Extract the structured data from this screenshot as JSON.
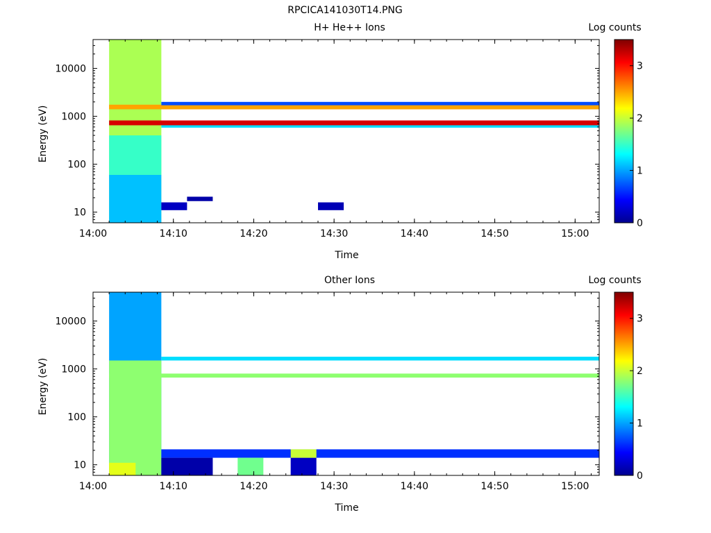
{
  "figure_title": "RPCICA141030T14.PNG",
  "colors": {
    "colormap": [
      "#00008f",
      "#0000ff",
      "#007fff",
      "#00ffff",
      "#7fff7f",
      "#ffff00",
      "#ff7f00",
      "#ff0000",
      "#7f0000"
    ],
    "background": "#ffffff"
  },
  "chart_data": [
    {
      "type": "heatmap",
      "title": "H+ He++ Ions",
      "xlabel": "Time",
      "ylabel": "Energy (eV)",
      "colorbar_label": "Log counts",
      "colorbar_ticks": [
        "0",
        "1",
        "2",
        "3"
      ],
      "colorbar_range": [
        0,
        3.5
      ],
      "x_ticks": [
        "14:00",
        "14:10",
        "14:20",
        "14:30",
        "14:40",
        "14:50",
        "15:00"
      ],
      "y_ticks": [
        "10",
        "100",
        "1000",
        "10000"
      ],
      "xlim": [
        "14:00",
        "15:03"
      ],
      "ylim": [
        6,
        40000
      ],
      "y_scale": "log",
      "bands": [
        {
          "t0": "14:02",
          "t1": "14:08.5",
          "e0": 6,
          "e1": 40000,
          "value": 1.9
        },
        {
          "t0": "14:02",
          "t1": "14:08.5",
          "e0": 6,
          "e1": 60,
          "value": 1.1
        },
        {
          "t0": "14:02",
          "t1": "14:08.5",
          "e0": 60,
          "e1": 400,
          "value": 1.5
        },
        {
          "t0": "14:02",
          "t1": "14:63",
          "e0": 650,
          "e1": 820,
          "value": 3.2
        },
        {
          "t0": "14:02",
          "t1": "14:63",
          "e0": 1400,
          "e1": 1750,
          "value": 2.5
        },
        {
          "t0": "14:08.5",
          "t1": "14:63",
          "e0": 580,
          "e1": 650,
          "value": 1.2
        },
        {
          "t0": "14:08.5",
          "t1": "14:63",
          "e0": 1700,
          "e1": 2000,
          "value": 0.7
        },
        {
          "t0": "14:08.5",
          "t1": "14:11.7",
          "e0": 11,
          "e1": 16,
          "value": 0.2
        },
        {
          "t0": "14:28",
          "t1": "14:31.2",
          "e0": 11,
          "e1": 16,
          "value": 0.15
        },
        {
          "t0": "14:11.7",
          "t1": "14:14.9",
          "e0": 17,
          "e1": 21,
          "value": 0.1
        }
      ]
    },
    {
      "type": "heatmap",
      "title": "Other Ions",
      "xlabel": "Time",
      "ylabel": "Energy (eV)",
      "colorbar_label": "Log counts",
      "colorbar_ticks": [
        "0",
        "1",
        "2",
        "3"
      ],
      "colorbar_range": [
        0,
        3.5
      ],
      "x_ticks": [
        "14:00",
        "14:10",
        "14:20",
        "14:30",
        "14:40",
        "14:50",
        "15:00"
      ],
      "y_ticks": [
        "10",
        "100",
        "1000",
        "10000"
      ],
      "xlim": [
        "14:00",
        "15:03"
      ],
      "ylim": [
        6,
        40000
      ],
      "y_scale": "log",
      "bands": [
        {
          "t0": "14:02",
          "t1": "14:08.5",
          "e0": 6,
          "e1": 40000,
          "value": 1.0
        },
        {
          "t0": "14:02",
          "t1": "14:08.5",
          "e0": 6,
          "e1": 1500,
          "value": 1.8
        },
        {
          "t0": "14:02",
          "t1": "14:05.3",
          "e0": 6,
          "e1": 11,
          "value": 2.1
        },
        {
          "t0": "14:02",
          "t1": "14:63",
          "e0": 660,
          "e1": 800,
          "value": 1.8
        },
        {
          "t0": "14:08.5",
          "t1": "14:63",
          "e0": 1500,
          "e1": 1800,
          "value": 1.2
        },
        {
          "t0": "14:08.5",
          "t1": "14:63",
          "e0": 14,
          "e1": 21,
          "value": 0.6
        },
        {
          "t0": "14:08.5",
          "t1": "14:14.9",
          "e0": 6,
          "e1": 14,
          "value": 0.1
        },
        {
          "t0": "14:18",
          "t1": "14:21.2",
          "e0": 6,
          "e1": 14,
          "value": 1.7
        },
        {
          "t0": "14:24.6",
          "t1": "14:27.8",
          "e0": 6,
          "e1": 14,
          "value": 0.2
        },
        {
          "t0": "14:24.6",
          "t1": "14:27.8",
          "e0": 14,
          "e1": 21,
          "value": 2.0
        }
      ]
    }
  ]
}
